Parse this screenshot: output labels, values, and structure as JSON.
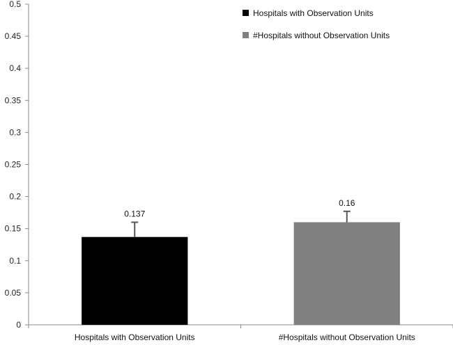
{
  "chart_data": {
    "type": "bar",
    "categories": [
      "Hospitals with Observation Units",
      "#Hospitals without Observation Units"
    ],
    "values": [
      0.137,
      0.16
    ],
    "error_upper": [
      0.16,
      0.177
    ],
    "data_labels": [
      "0.137",
      "0.16"
    ],
    "colors": [
      "#000000",
      "#808080"
    ],
    "legend": {
      "position": "top-right",
      "entries": [
        {
          "label": "Hospitals with Observation Units",
          "color": "#000000"
        },
        {
          "label": "#Hospitals without Observation Units",
          "color": "#808080"
        }
      ]
    },
    "ylim": [
      0,
      0.5
    ],
    "yticks": [
      "0",
      "0.05",
      "0.1",
      "0.15",
      "0.2",
      "0.25",
      "0.3",
      "0.35",
      "0.4",
      "0.45",
      "0.5"
    ],
    "grid": false
  }
}
